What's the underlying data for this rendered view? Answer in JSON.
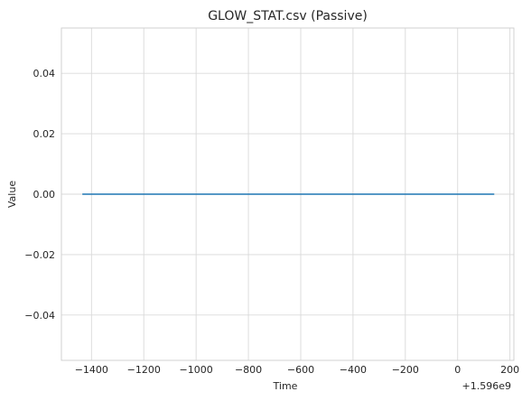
{
  "chart_data": {
    "type": "line",
    "title": "GLOW_STAT.csv (Passive)",
    "xlabel": "Time",
    "ylabel": "Value",
    "x_offset_label": "+1.596e9",
    "xlim": [
      -1515,
      215
    ],
    "ylim": [
      -0.055,
      0.055
    ],
    "x_ticks": [
      -1400,
      -1200,
      -1000,
      -800,
      -600,
      -400,
      -200,
      0,
      200
    ],
    "x_tick_labels": [
      "−1400",
      "−1200",
      "−1000",
      "−800",
      "−600",
      "−400",
      "−200",
      "0",
      "200"
    ],
    "y_ticks": [
      -0.04,
      -0.02,
      0.0,
      0.02,
      0.04
    ],
    "y_tick_labels": [
      "−0.04",
      "−0.02",
      "0.00",
      "0.02",
      "0.04"
    ],
    "grid": true,
    "series": [
      {
        "color": "#1f77b4",
        "x": [
          -1435,
          140
        ],
        "y": [
          0,
          0
        ]
      }
    ]
  }
}
